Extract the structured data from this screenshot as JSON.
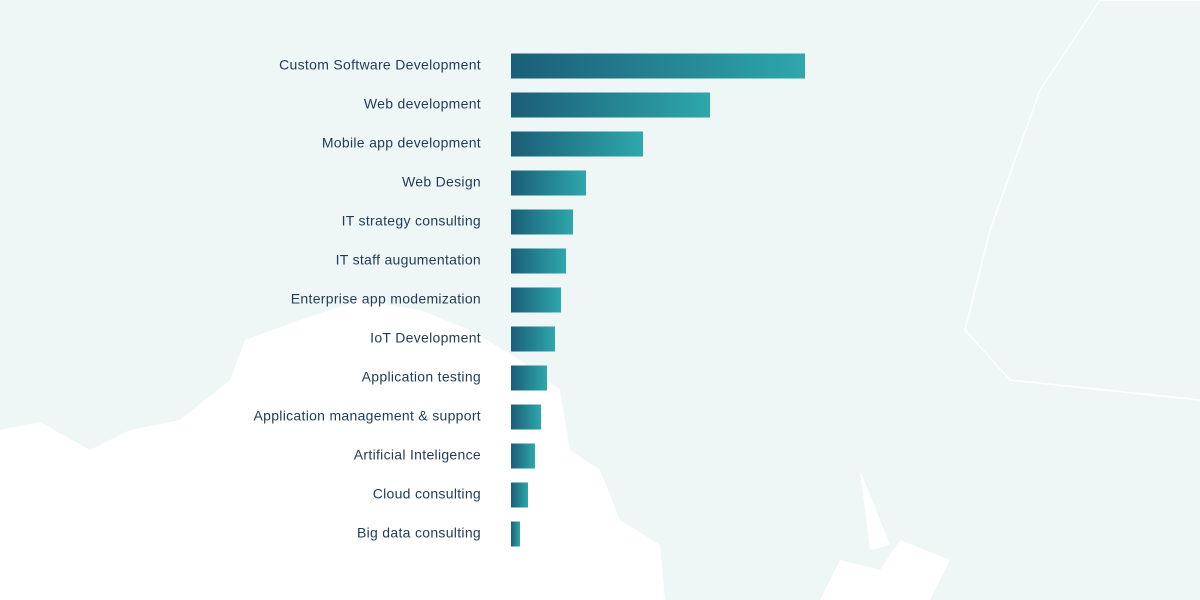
{
  "chart_data": {
    "type": "bar",
    "categories": [
      "Custom Software Development",
      "Web development",
      "Mobile app development",
      "Web Design",
      "IT strategy consulting",
      "IT staff augumentation",
      "Enterprise app modemization",
      "IoT Development",
      "Application testing",
      "Application management & support",
      "Artificial Inteligence",
      "Cloud consulting",
      "Big data consulting"
    ],
    "values": [
      294,
      199,
      132,
      75,
      62,
      55,
      50,
      44,
      36,
      30,
      24,
      17,
      9
    ],
    "colors": [
      "#1b5e78",
      "#2ea7ab"
    ]
  }
}
